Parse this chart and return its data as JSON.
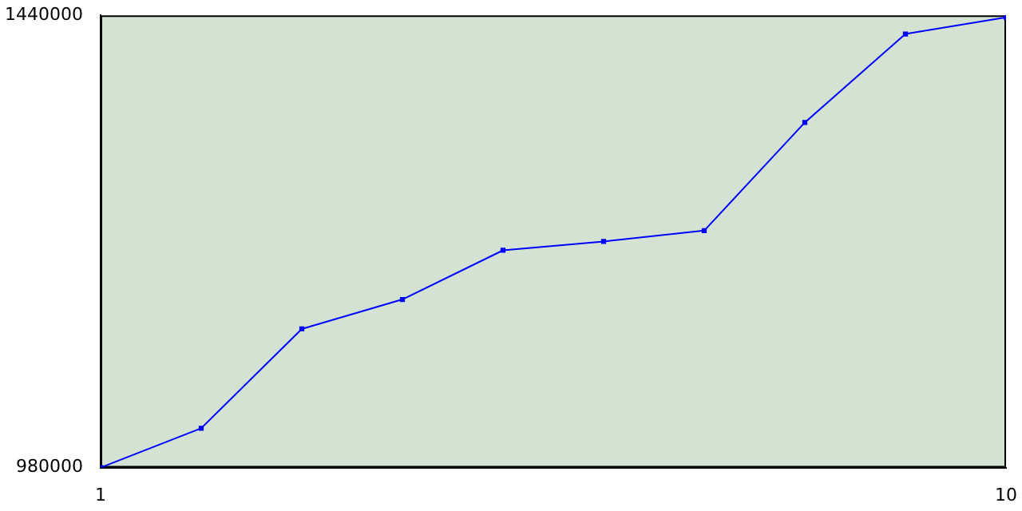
{
  "chart_data": {
    "type": "line",
    "x": [
      1,
      2,
      3,
      4,
      5,
      6,
      7,
      8,
      9,
      10
    ],
    "series": [
      {
        "color": "#0000ff",
        "values": [
          980000,
          1020000,
          1121000,
          1151000,
          1201000,
          1210000,
          1221000,
          1331000,
          1421000,
          1438000
        ]
      }
    ],
    "xlim": [
      1,
      10
    ],
    "xticks": [
      1,
      10
    ],
    "ylim": [
      980000,
      1440000
    ],
    "yticks": [
      980000,
      1440000
    ],
    "grid": false,
    "legend": false,
    "marker": "square",
    "line_style": "solid"
  }
}
